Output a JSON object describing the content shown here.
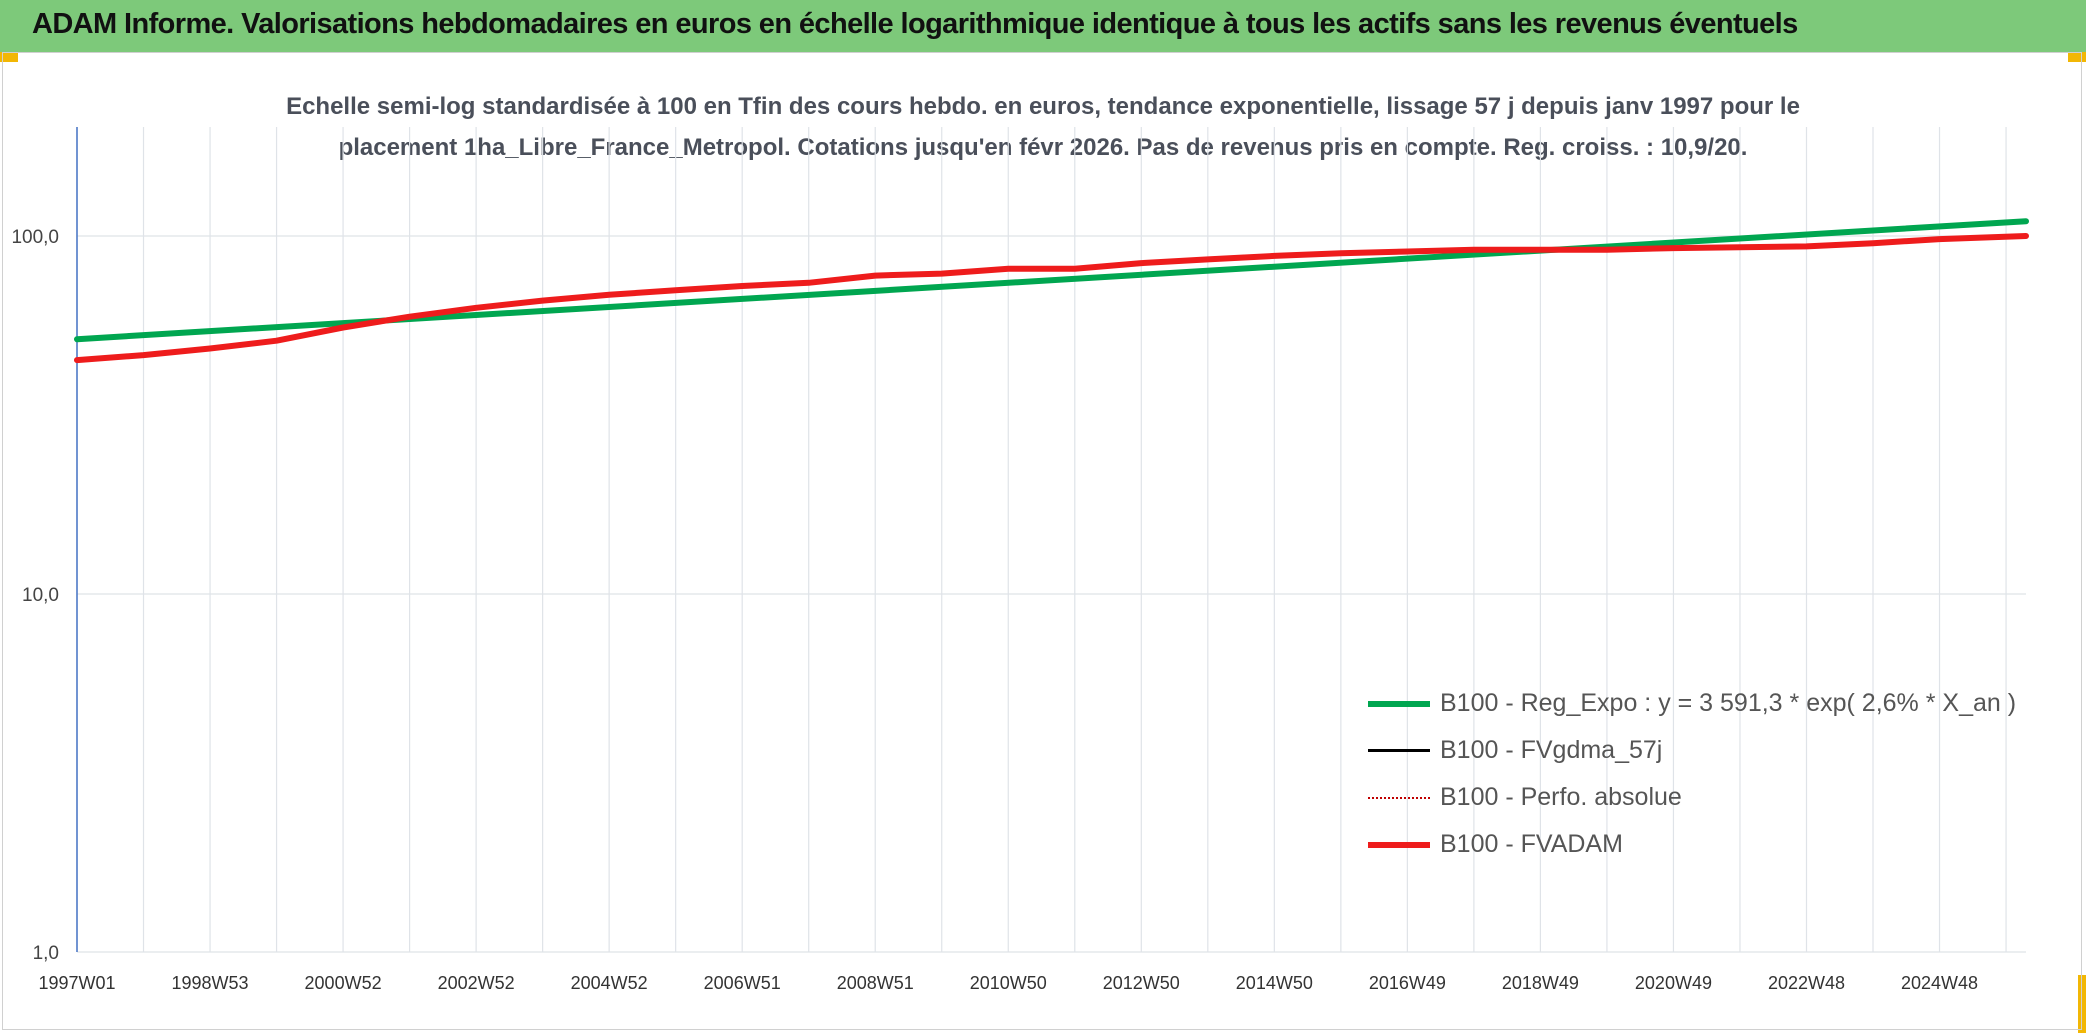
{
  "header": {
    "title": "ADAM Informe. Valorisations hebdomadaires en euros en échelle logarithmique identique à tous les actifs sans les revenus éventuels"
  },
  "colors": {
    "header_bg": "#7dc97a",
    "accent": "#f2b705",
    "trend": "#00a650",
    "fvadam": "#ee1c1c",
    "gdma": "#000000",
    "perfo": "#c00000"
  },
  "chart_data": {
    "type": "line",
    "title_lines": [
      "Echelle semi-log standardisée à 100 en Tfin des cours hebdo. en euros, tendance exponentielle, lissage 57 j depuis janv 1997 pour le",
      "placement 1ha_Libre_France_Metropol. Cotations jusqu'en févr 2026. Pas de revenus pris en compte. Reg. croiss. : 10,9/20."
    ],
    "y_scale": "log",
    "ylim": [
      1,
      100
    ],
    "y_ticks": [
      {
        "value": 1,
        "label": "1,0"
      },
      {
        "value": 10,
        "label": "10,0"
      },
      {
        "value": 100,
        "label": "100,0"
      }
    ],
    "xlim": [
      1997.0,
      2026.3
    ],
    "x_ticks": [
      {
        "value": 1997.0,
        "label": "1997W01"
      },
      {
        "value": 1999.0,
        "label": "1998W53"
      },
      {
        "value": 2001.0,
        "label": "2000W52"
      },
      {
        "value": 2003.0,
        "label": "2002W52"
      },
      {
        "value": 2005.0,
        "label": "2004W52"
      },
      {
        "value": 2007.0,
        "label": "2006W51"
      },
      {
        "value": 2009.0,
        "label": "2008W51"
      },
      {
        "value": 2011.0,
        "label": "2010W50"
      },
      {
        "value": 2013.0,
        "label": "2012W50"
      },
      {
        "value": 2015.0,
        "label": "2014W50"
      },
      {
        "value": 2017.0,
        "label": "2016W49"
      },
      {
        "value": 2019.0,
        "label": "2018W49"
      },
      {
        "value": 2021.0,
        "label": "2020W49"
      },
      {
        "value": 2023.0,
        "label": "2022W48"
      },
      {
        "value": 2025.0,
        "label": "2024W48"
      }
    ],
    "grid": true,
    "legend_position": "bottom-right",
    "series": [
      {
        "name": "B100 - Reg_Expo : y = 3 591,3 * exp( 2,6% *  X_an )",
        "style": "solid-thick",
        "color": "#00a650",
        "x": [
          1997.0,
          2026.3
        ],
        "values": [
          51.5,
          110
        ]
      },
      {
        "name": "B100 - FVgdma_57j",
        "style": "solid-thin",
        "color": "#000000",
        "x": [],
        "values": []
      },
      {
        "name": "B100 - Perfo. absolue",
        "style": "dotted",
        "color": "#c00000",
        "x": [],
        "values": []
      },
      {
        "name": "B100 - FVADAM",
        "style": "solid-thick",
        "color": "#ee1c1c",
        "x": [
          1997.0,
          1998.0,
          1999.0,
          2000.0,
          2001.0,
          2002.0,
          2003.0,
          2004.0,
          2005.0,
          2006.0,
          2007.0,
          2008.0,
          2009.0,
          2010.0,
          2011.0,
          2012.0,
          2013.0,
          2014.0,
          2015.0,
          2016.0,
          2017.0,
          2018.0,
          2019.0,
          2020.0,
          2021.0,
          2022.0,
          2023.0,
          2024.0,
          2025.0,
          2026.3
        ],
        "values": [
          45.0,
          46.5,
          48.5,
          51.0,
          55.5,
          59.5,
          63.0,
          66.0,
          68.5,
          70.5,
          72.5,
          74.0,
          77.5,
          78.5,
          81.0,
          81.0,
          84.0,
          86.0,
          88.0,
          89.5,
          90.5,
          91.5,
          91.5,
          91.5,
          92.5,
          93.0,
          93.5,
          95.5,
          98.0,
          100.0
        ]
      }
    ]
  }
}
